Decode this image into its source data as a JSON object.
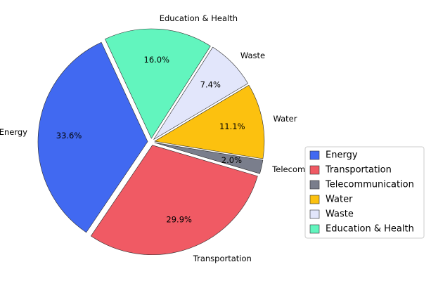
{
  "chart_data": {
    "type": "pie",
    "title": "",
    "categories": [
      "Energy",
      "Transportation",
      "Telecommunication",
      "Water",
      "Waste",
      "Education & Health"
    ],
    "values": [
      33.6,
      29.9,
      2.0,
      11.1,
      7.4,
      16.0
    ],
    "value_labels": [
      "33.6%",
      "29.9%",
      "2.0%",
      "11.1%",
      "7.4%",
      "16.0%"
    ],
    "colors": [
      "#4169f1",
      "#f05a64",
      "#7a7e8c",
      "#fcc10f",
      "#e2e6fb",
      "#62f5be"
    ],
    "start_angle_deg": 115,
    "direction": "counterclockwise",
    "exploded": true,
    "legend": {
      "position": "right",
      "entries": [
        "Energy",
        "Transportation",
        "Telecommunication",
        "Water",
        "Waste",
        "Education & Health"
      ]
    }
  }
}
